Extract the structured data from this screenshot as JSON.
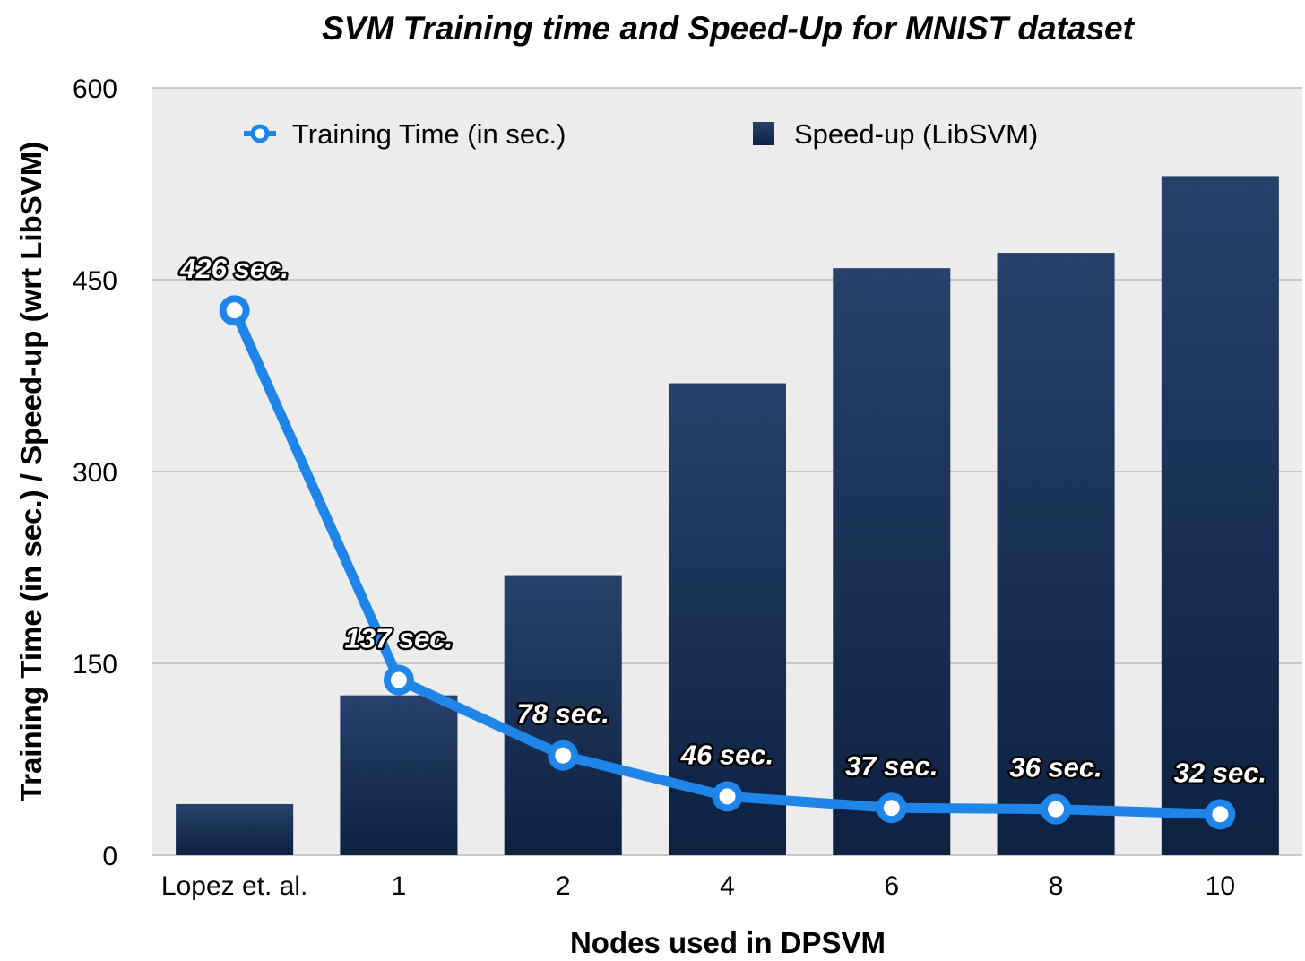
{
  "chart_data": {
    "type": "bar",
    "title": "SVM Training time and Speed-Up for MNIST dataset",
    "xlabel": "Nodes used in DPSVM",
    "ylabel": "Training Time (in sec.) / Speed-up (wrt LibSVM)",
    "categories": [
      "Lopez et. al.",
      "1",
      "2",
      "4",
      "6",
      "8",
      "10"
    ],
    "ylim": [
      0,
      600
    ],
    "yticks": [
      "0",
      "150",
      "300",
      "450",
      "600"
    ],
    "grid": true,
    "legend_position": "top",
    "series": [
      {
        "name": "Training Time (in sec.)",
        "type": "line",
        "values": [
          426,
          137,
          78,
          46,
          37,
          36,
          32
        ],
        "data_labels": [
          "426 sec.",
          "137 sec.",
          "78 sec.",
          "46 sec.",
          "37 sec.",
          "36 sec.",
          "32 sec."
        ],
        "color": "#1f85e8"
      },
      {
        "name": "Speed-up (LibSVM)",
        "type": "bar",
        "values": [
          40,
          125,
          219,
          369,
          459,
          471,
          531
        ],
        "color": "#1a3457"
      }
    ]
  }
}
